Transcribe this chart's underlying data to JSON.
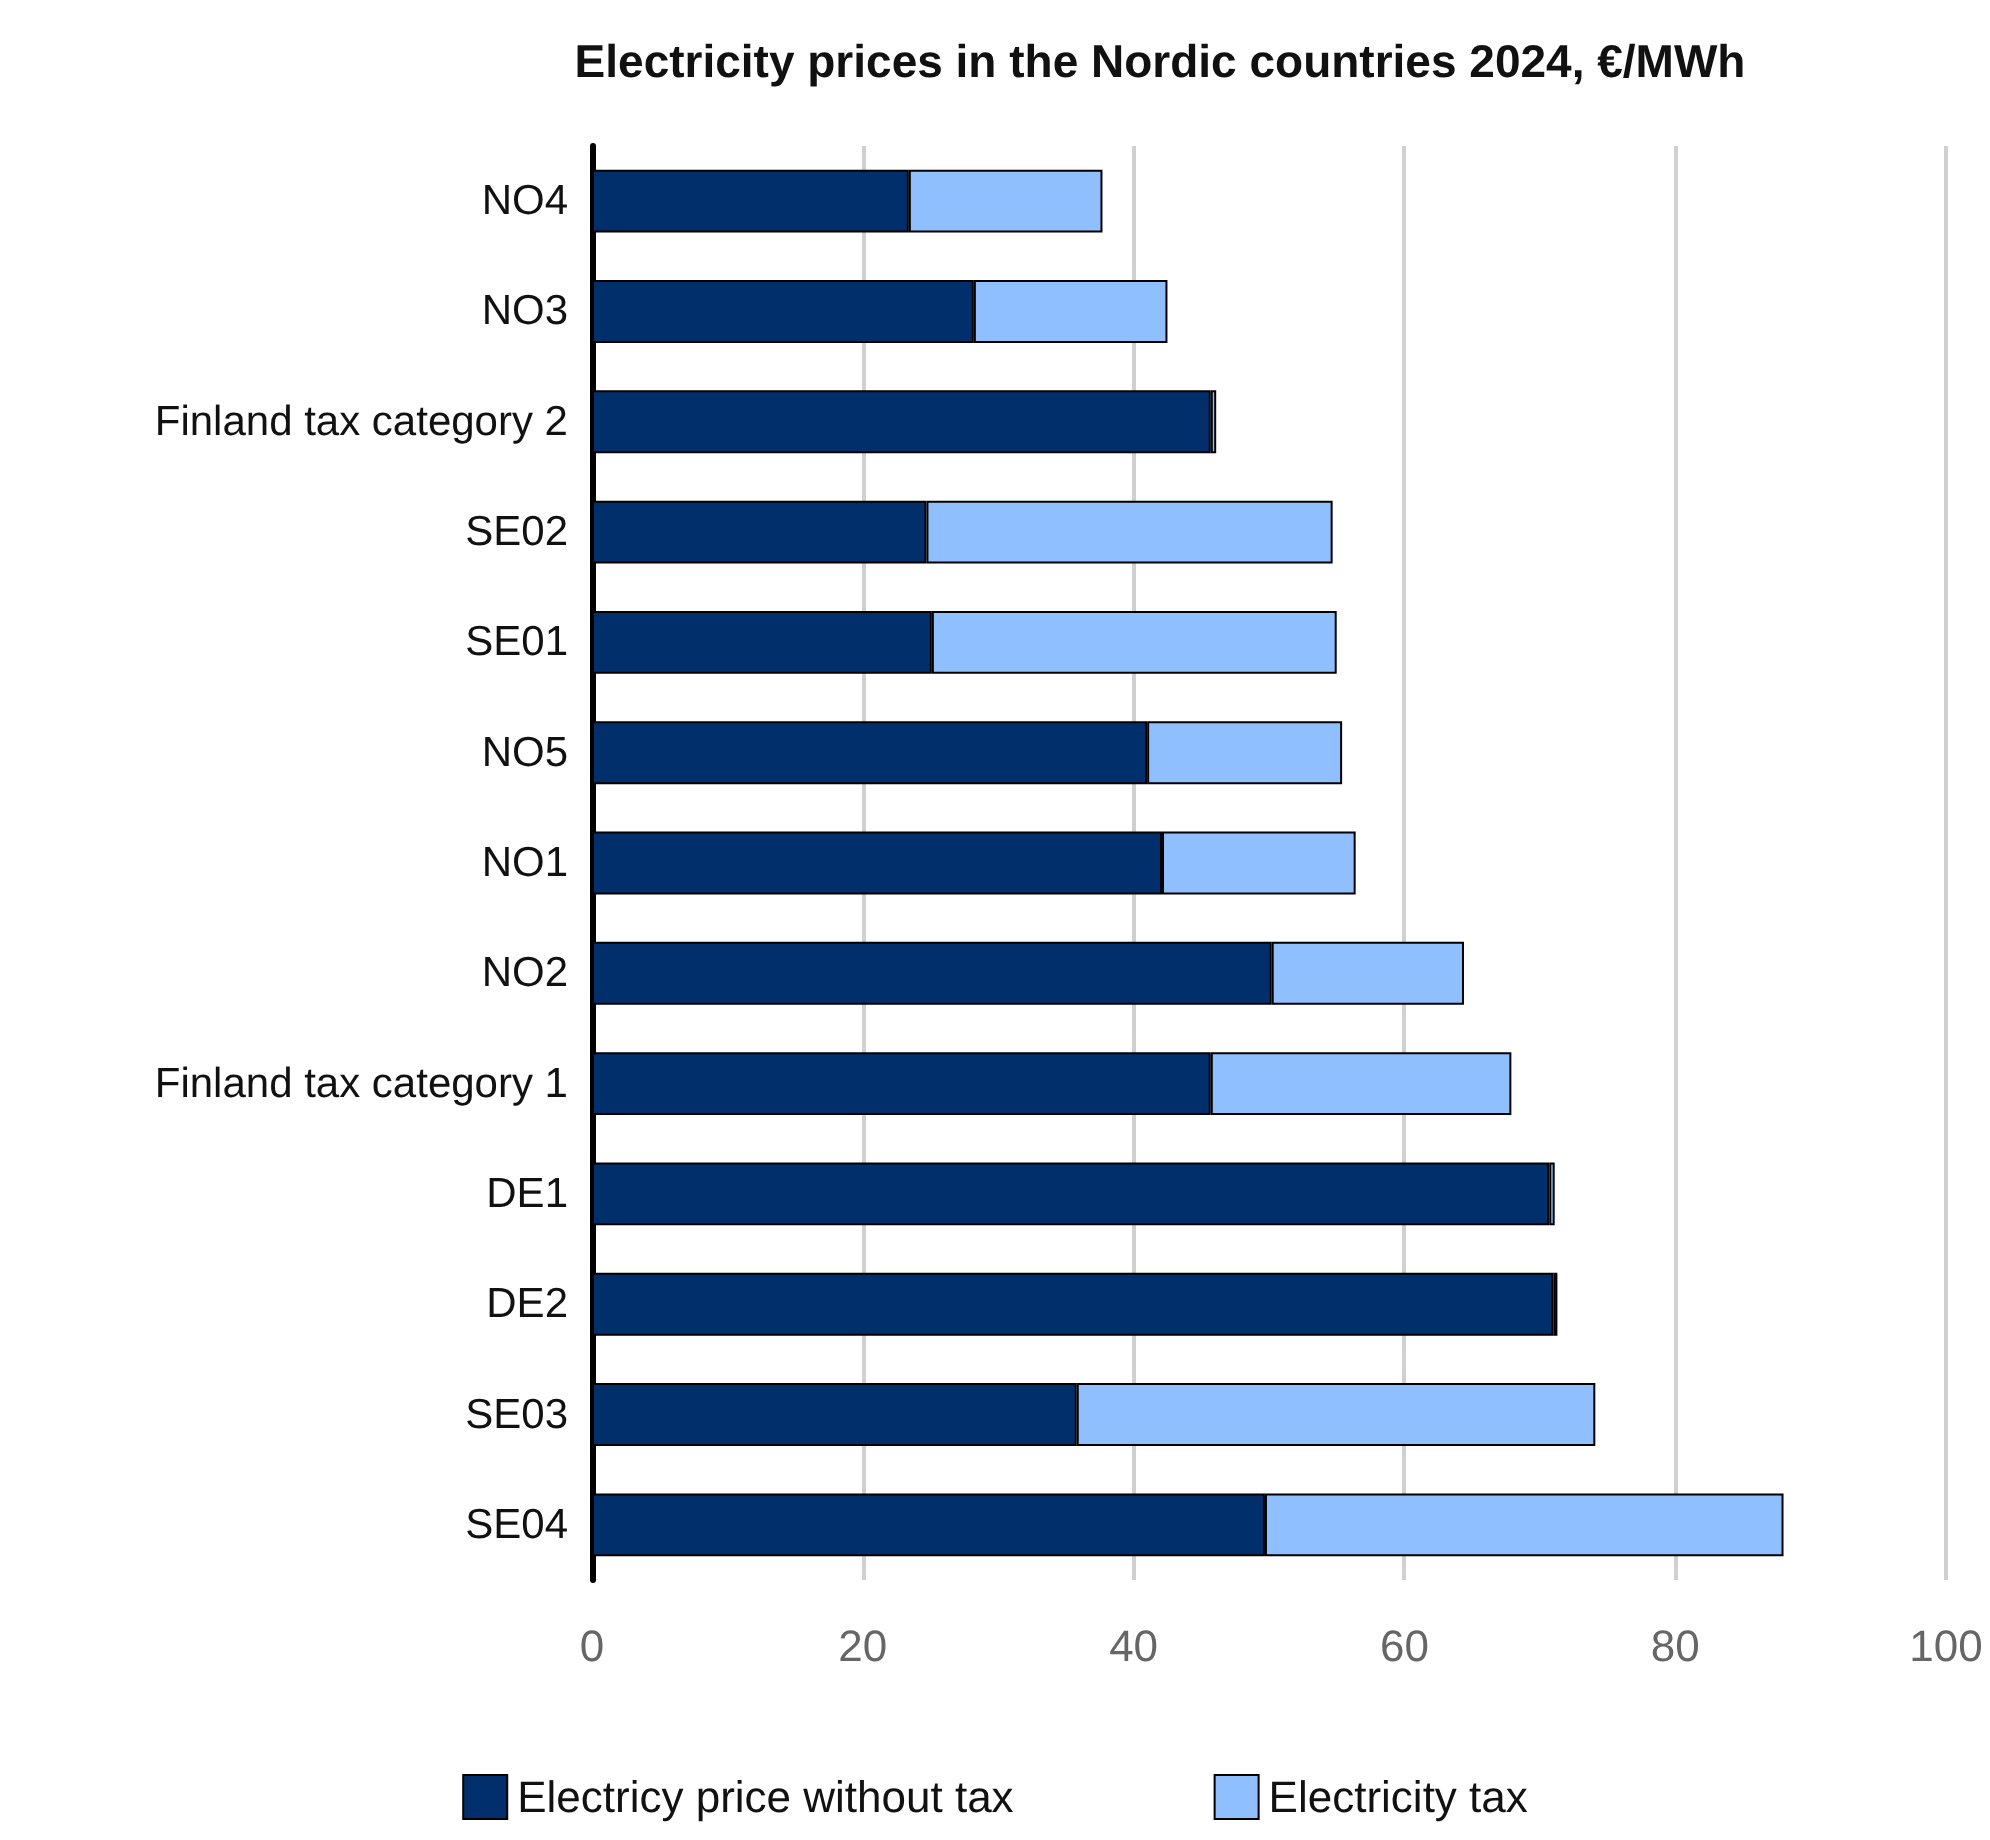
{
  "chart_data": {
    "type": "bar",
    "orientation": "horizontal",
    "stacked": true,
    "title": "Electricity prices in the Nordic countries 2024, €/MWh",
    "categories": [
      "NO4",
      "NO3",
      "Finland tax category 2",
      "SE02",
      "SE01",
      "NO5",
      "NO1",
      "NO2",
      "Finland tax category 1",
      "DE1",
      "DE2",
      "SE03",
      "SE04"
    ],
    "series": [
      {
        "name": "Electricy price without tax",
        "color": "#002f6c",
        "values": [
          23.4,
          28.2,
          45.7,
          24.7,
          25.1,
          41.0,
          42.1,
          50.2,
          45.7,
          70.7,
          71.0,
          35.8,
          49.7
        ]
      },
      {
        "name": "Electricity tax",
        "color": "#8fbfff",
        "values": [
          14.3,
          14.3,
          0.4,
          30.0,
          29.9,
          14.4,
          14.3,
          14.2,
          22.2,
          0.4,
          0.3,
          38.3,
          38.3
        ]
      }
    ],
    "xlim": [
      0,
      100
    ],
    "xticks": [
      0,
      20,
      40,
      60,
      80,
      100
    ],
    "grid": "x",
    "legend": "bottom"
  }
}
